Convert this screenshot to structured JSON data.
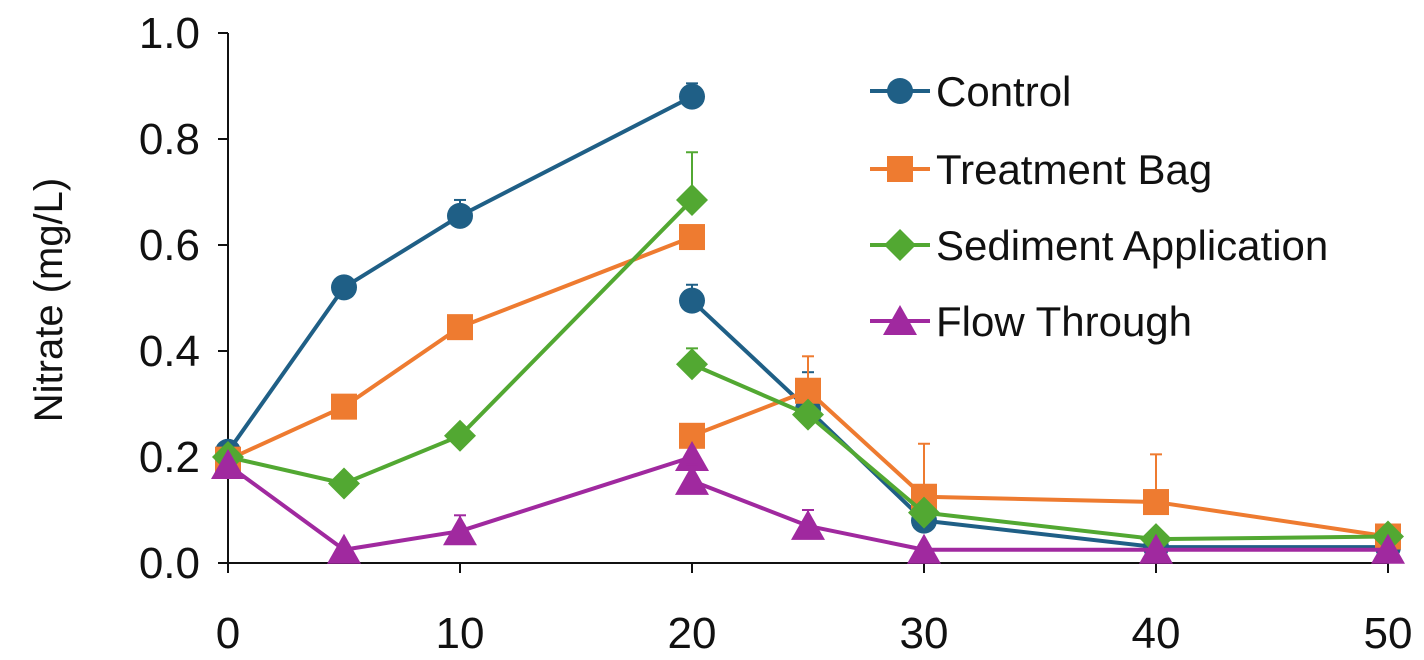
{
  "chart_data": {
    "type": "line",
    "title": "",
    "xlabel": "",
    "ylabel": "Nitrate (mg/L)",
    "xlim": [
      0,
      50
    ],
    "ylim": [
      0,
      1.0
    ],
    "x_ticks": [
      0,
      10,
      20,
      30,
      40,
      50
    ],
    "y_ticks": [
      0.0,
      0.2,
      0.4,
      0.6,
      0.8,
      1.0
    ],
    "y_tick_labels": [
      "0.0",
      "0.2",
      "0.4",
      "0.6",
      "0.8",
      "1.0"
    ],
    "grid": false,
    "legend_position": "top-right",
    "series": [
      {
        "name": "Control",
        "color": "#1f5f86",
        "marker": "circle",
        "segments": [
          {
            "x": [
              0,
              5,
              10,
              20
            ],
            "y": [
              0.21,
              0.52,
              0.655,
              0.88
            ],
            "err": [
              0.0,
              0.0,
              0.03,
              0.025
            ]
          },
          {
            "x": [
              20,
              25,
              30,
              40,
              50
            ],
            "y": [
              0.495,
              0.29,
              0.08,
              0.03,
              0.03
            ],
            "err": [
              0.03,
              0.07,
              0.0,
              0.0,
              0.0
            ]
          }
        ]
      },
      {
        "name": "Treatment Bag",
        "color": "#ee7b30",
        "marker": "square",
        "segments": [
          {
            "x": [
              0,
              5,
              10,
              20
            ],
            "y": [
              0.195,
              0.295,
              0.445,
              0.615
            ],
            "err": [
              0.0,
              0.0,
              0.0,
              0.0
            ]
          },
          {
            "x": [
              20,
              25,
              30,
              40,
              50
            ],
            "y": [
              0.24,
              0.325,
              0.125,
              0.115,
              0.05
            ],
            "err": [
              0.0,
              0.065,
              0.1,
              0.09,
              0.0
            ]
          }
        ]
      },
      {
        "name": "Sediment Application",
        "color": "#52a832",
        "marker": "diamond",
        "segments": [
          {
            "x": [
              0,
              5,
              10,
              20
            ],
            "y": [
              0.2,
              0.15,
              0.24,
              0.685
            ],
            "err": [
              0.0,
              0.0,
              0.0,
              0.09
            ]
          },
          {
            "x": [
              20,
              25,
              30,
              40,
              50
            ],
            "y": [
              0.375,
              0.28,
              0.095,
              0.045,
              0.05
            ],
            "err": [
              0.03,
              0.0,
              0.0,
              0.0,
              0.0
            ]
          }
        ]
      },
      {
        "name": "Flow Through",
        "color": "#a0299f",
        "marker": "triangle",
        "segments": [
          {
            "x": [
              0,
              5,
              10,
              20
            ],
            "y": [
              0.185,
              0.025,
              0.06,
              0.2
            ],
            "err": [
              0.0,
              0.0,
              0.03,
              0.0
            ]
          },
          {
            "x": [
              20,
              25,
              30,
              40,
              50
            ],
            "y": [
              0.155,
              0.07,
              0.025,
              0.025,
              0.025
            ],
            "err": [
              0.03,
              0.03,
              0.0,
              0.0,
              0.0
            ]
          }
        ]
      }
    ]
  }
}
